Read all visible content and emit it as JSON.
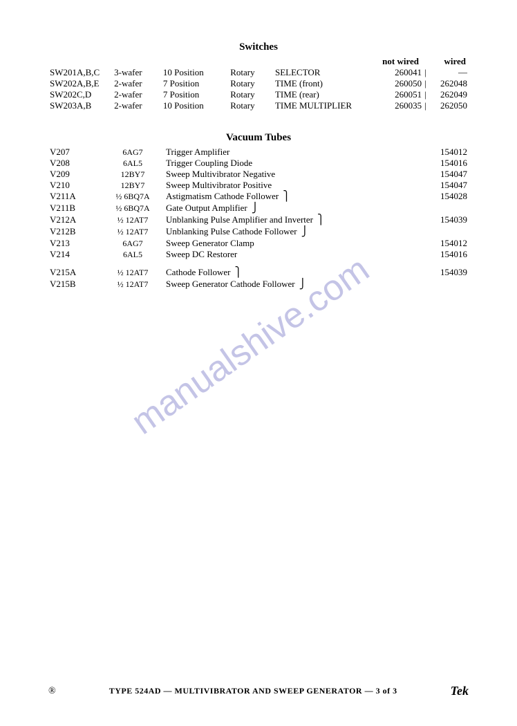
{
  "sections": {
    "switches": {
      "title": "Switches",
      "headers": {
        "not_wired": "not wired",
        "wired": "wired"
      },
      "rows": [
        {
          "ref": "SW201A,B,C",
          "wafer": "3-wafer",
          "pos": "10 Position",
          "rot": "Rotary",
          "func": "SELECTOR",
          "nw": "260041",
          "w": "—"
        },
        {
          "ref": "SW202A,B,E",
          "wafer": "2-wafer",
          "pos": "7 Position",
          "rot": "Rotary",
          "func": "TIME (front)",
          "nw": "260050",
          "w": "262048"
        },
        {
          "ref": "SW202C,D",
          "wafer": "2-wafer",
          "pos": "7 Position",
          "rot": "Rotary",
          "func": "TIME (rear)",
          "nw": "260051",
          "w": "262049"
        },
        {
          "ref": "SW203A,B",
          "wafer": "2-wafer",
          "pos": "10 Position",
          "rot": "Rotary",
          "func": "TIME MULTIPLIER",
          "nw": "260035",
          "w": "262050"
        }
      ]
    },
    "vacuum_tubes": {
      "title": "Vacuum Tubes",
      "rows": [
        {
          "ref": "V207",
          "type": "6AG7",
          "desc": "Trigger Amplifier",
          "pn": "154012"
        },
        {
          "ref": "V208",
          "type": "6AL5",
          "desc": "Trigger Coupling Diode",
          "pn": "154016"
        },
        {
          "ref": "V209",
          "type": "12BY7",
          "desc": "Sweep Multivibrator Negative",
          "pn": "154047"
        },
        {
          "ref": "V210",
          "type": "12BY7",
          "desc": "Sweep Multivibrator Positive",
          "pn": "154047"
        },
        {
          "ref": "V211A",
          "type": "½ 6BQ7A",
          "desc": "Astigmatism Cathode Follower",
          "pn": "154028",
          "brace": "⎫"
        },
        {
          "ref": "V211B",
          "type": "½ 6BQ7A",
          "desc": "Gate Output Amplifier",
          "pn": "",
          "brace": "⎭"
        },
        {
          "ref": "V212A",
          "type": "½ 12AT7",
          "desc": "Unblanking Pulse Amplifier and Inverter",
          "pn": "154039",
          "brace": "⎫"
        },
        {
          "ref": "V212B",
          "type": "½ 12AT7",
          "desc": "Unblanking Pulse Cathode Follower",
          "pn": "",
          "brace": "⎭"
        },
        {
          "ref": "V213",
          "type": "6AG7",
          "desc": "Sweep Generator Clamp",
          "pn": "154012"
        },
        {
          "ref": "V214",
          "type": "6AL5",
          "desc": "Sweep DC Restorer",
          "pn": "154016"
        }
      ],
      "rows2": [
        {
          "ref": "V215A",
          "type": "½ 12AT7",
          "desc": "Cathode Follower",
          "pn": "154039",
          "brace": "⎫"
        },
        {
          "ref": "V215B",
          "type": "½ 12AT7",
          "desc": "Sweep Generator Cathode Follower",
          "pn": "",
          "brace": "⎭"
        }
      ]
    }
  },
  "watermark": "manualshive.com",
  "footer": {
    "symbol": "®",
    "text": "TYPE 524AD — MULTIVIBRATOR AND SWEEP GENERATOR — 3 of 3",
    "logo": "Tek"
  }
}
